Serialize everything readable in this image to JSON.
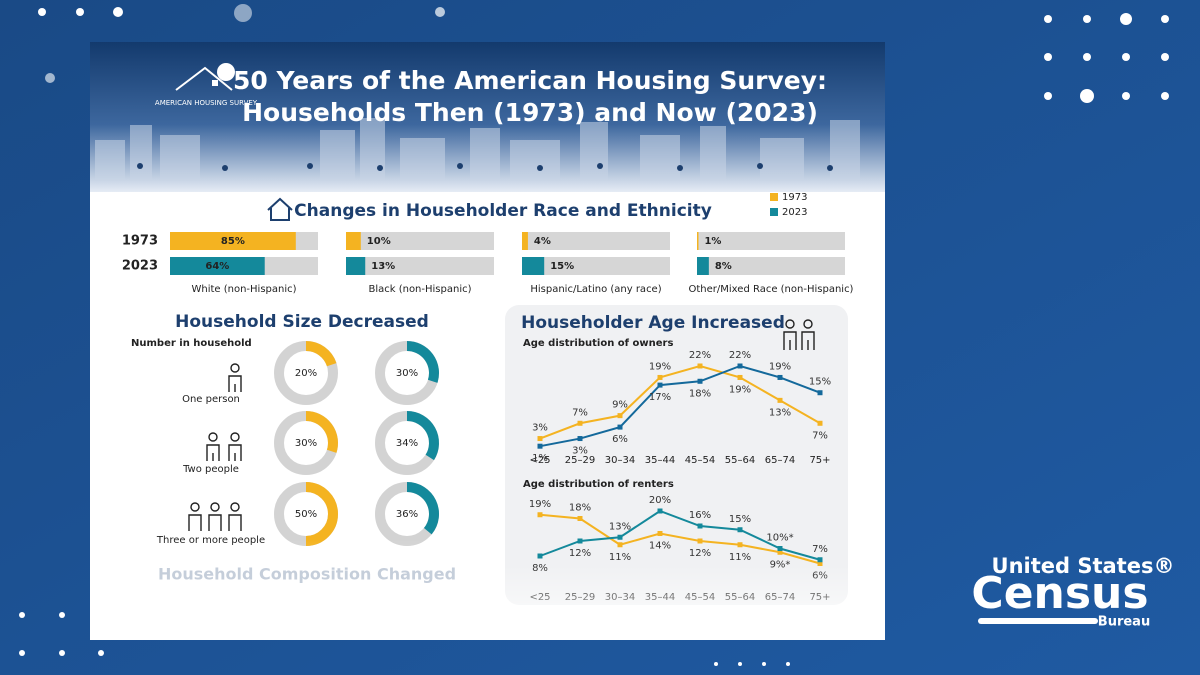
{
  "header": {
    "logo_text": "AMERICAN HOUSING SURVEY",
    "title": [
      "50 Years of the American Housing Survey:",
      "Households Then (1973) and Now (2023)"
    ]
  },
  "chart_data": [
    {
      "type": "bar",
      "title": "Changes in Householder Race and Ethnicity",
      "categories": [
        "White (non-Hispanic)",
        "Black (non-Hispanic)",
        "Hispanic/Latino (any race)",
        "Other/Mixed Race (non-Hispanic)"
      ],
      "xlim": [
        0,
        100
      ],
      "series": [
        {
          "name": "1973",
          "color": "#f4b321",
          "values": [
            85,
            10,
            4,
            1
          ],
          "value_labels": [
            "85%",
            "10%",
            "4%",
            "1%"
          ]
        },
        {
          "name": "2023",
          "color": "#14899b",
          "values": [
            64,
            13,
            15,
            8
          ],
          "value_labels": [
            "64%",
            "13%",
            "15%",
            "8%"
          ]
        }
      ]
    },
    {
      "type": "donut",
      "title": "Household Size Decreased",
      "subtitle": "Number in household",
      "categories": [
        "One person",
        "Two people",
        "Three or more people"
      ],
      "series": [
        {
          "name": "1973",
          "color": "#f4b321",
          "values": [
            20,
            30,
            50
          ],
          "value_labels": [
            "20%",
            "30%",
            "50%"
          ]
        },
        {
          "name": "2023",
          "color": "#14899b",
          "values": [
            30,
            34,
            36
          ],
          "value_labels": [
            "30%",
            "34%",
            "36%"
          ]
        }
      ]
    },
    {
      "type": "line",
      "title": "Householder Age Increased",
      "subtitle": "Age distribution of owners",
      "categories": [
        "<25",
        "25–29",
        "30–34",
        "35–44",
        "45–54",
        "55–64",
        "65–74",
        "75+"
      ],
      "series": [
        {
          "name": "1973",
          "color": "#f4b321",
          "values": [
            3,
            7,
            9,
            19,
            22,
            19,
            13,
            7
          ],
          "value_labels": [
            "3%",
            "7%",
            "9%",
            "19%",
            "22%",
            "19%",
            "13%",
            "7%"
          ]
        },
        {
          "name": "2023",
          "color": "#14699b",
          "values": [
            1,
            3,
            6,
            17,
            18,
            22,
            19,
            15
          ],
          "value_labels": [
            "1%",
            "3%",
            "6%",
            "17%",
            "18%",
            "22%",
            "19%",
            "15%"
          ]
        }
      ]
    },
    {
      "type": "line",
      "subtitle": "Age distribution of renters",
      "categories": [
        "<25",
        "25–29",
        "30–34",
        "35–44",
        "45–54",
        "55–64",
        "65–74",
        "75+"
      ],
      "series": [
        {
          "name": "1973",
          "color": "#f4b321",
          "values": [
            19,
            18,
            11,
            14,
            12,
            11,
            9,
            6
          ],
          "value_labels": [
            "19%",
            "18%",
            "11%",
            "14%",
            "12%",
            "11%",
            "9%*",
            "6%"
          ]
        },
        {
          "name": "2023",
          "color": "#14899b",
          "values": [
            8,
            12,
            13,
            20,
            16,
            15,
            10,
            7
          ],
          "value_labels": [
            "8%",
            "12%",
            "13%",
            "20%",
            "16%",
            "15%",
            "10%*",
            "7%"
          ]
        }
      ]
    }
  ],
  "faded_section": {
    "title": "Household Composition Changed"
  },
  "branding": {
    "line1": "United States®",
    "line2": "Census",
    "line3": "Bureau"
  }
}
